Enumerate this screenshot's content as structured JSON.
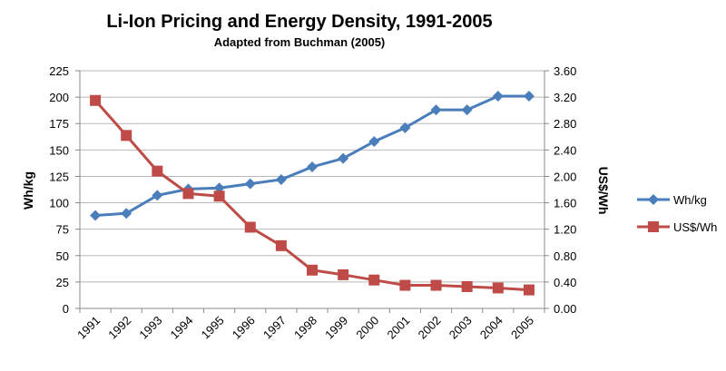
{
  "chart_data": {
    "type": "line",
    "title": "Li-Ion Pricing and Energy Density, 1991-2005",
    "subtitle": "Adapted from Buchman (2005)",
    "xlabel": "",
    "ylabel": "Wh/kg",
    "y2label": "US$/Wh",
    "categories": [
      "1991",
      "1992",
      "1993",
      "1994",
      "1995",
      "1996",
      "1997",
      "1998",
      "1999",
      "2000",
      "2001",
      "2002",
      "2003",
      "2004",
      "2005"
    ],
    "ylim": [
      0,
      225
    ],
    "y_ticks": [
      "0",
      "25",
      "50",
      "75",
      "100",
      "125",
      "150",
      "175",
      "200",
      "225"
    ],
    "y2lim": [
      0,
      3.6
    ],
    "y2_ticks": [
      "0.00",
      "0.40",
      "0.80",
      "1.20",
      "1.60",
      "2.00",
      "2.40",
      "2.80",
      "3.20",
      "3.60"
    ],
    "grid": true,
    "legend_position": "right",
    "series": [
      {
        "name": "Wh/kg",
        "axis": "left",
        "color": "#4a7ebb",
        "marker": "diamond",
        "values": [
          88,
          90,
          107,
          113,
          114,
          118,
          122,
          134,
          142,
          158,
          171,
          188,
          188,
          201,
          201
        ]
      },
      {
        "name": "US$/Wh",
        "axis": "right",
        "color": "#be4b48",
        "marker": "square",
        "values": [
          3.15,
          2.62,
          2.08,
          1.74,
          1.7,
          1.23,
          0.95,
          0.58,
          0.51,
          0.43,
          0.35,
          0.35,
          0.33,
          0.31,
          0.28
        ]
      }
    ]
  }
}
